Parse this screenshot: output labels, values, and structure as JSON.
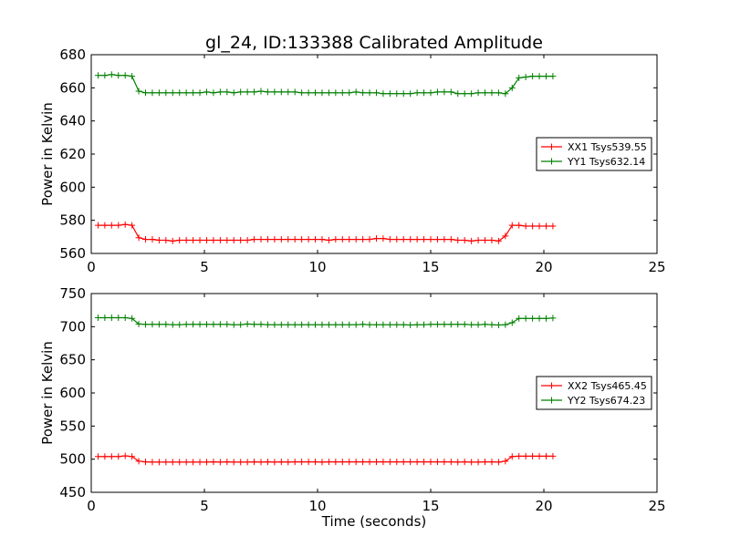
{
  "chart_data": [
    {
      "type": "line",
      "title": "gl_24, ID:133388 Calibrated Amplitude",
      "xlabel": "",
      "ylabel": "Power in Kelvin",
      "xlim": [
        0,
        25
      ],
      "ylim": [
        560,
        680
      ],
      "xticks": [
        0,
        5,
        10,
        15,
        20,
        25
      ],
      "yticks": [
        560,
        580,
        600,
        620,
        640,
        660,
        680
      ],
      "grid": false,
      "legend_position": "center-right",
      "series": [
        {
          "name": "XX1 Tsys539.55",
          "color": "#ff0000",
          "marker": "plus",
          "x": [
            0.3,
            0.6,
            0.9,
            1.2,
            1.5,
            1.8,
            2.1,
            2.4,
            2.7,
            3.0,
            3.3,
            3.6,
            3.9,
            4.2,
            4.5,
            4.8,
            5.1,
            5.4,
            5.7,
            6.0,
            6.3,
            6.6,
            6.9,
            7.2,
            7.5,
            7.8,
            8.1,
            8.4,
            8.7,
            9.0,
            9.3,
            9.6,
            9.9,
            10.2,
            10.5,
            10.8,
            11.1,
            11.4,
            11.7,
            12.0,
            12.3,
            12.6,
            12.9,
            13.2,
            13.5,
            13.8,
            14.1,
            14.4,
            14.7,
            15.0,
            15.3,
            15.6,
            15.9,
            16.2,
            16.5,
            16.8,
            17.1,
            17.4,
            17.7,
            18.0,
            18.3,
            18.6,
            18.9,
            19.2,
            19.5,
            19.8,
            20.1,
            20.4
          ],
          "y": [
            577,
            577,
            577,
            577,
            577.5,
            577,
            569.5,
            568.5,
            568.5,
            568,
            568,
            567.5,
            568,
            568,
            568,
            568,
            568,
            568,
            568,
            568,
            568,
            568,
            568,
            568.5,
            568.5,
            568.5,
            568.5,
            568.5,
            568.5,
            568.5,
            568.5,
            568.5,
            568.5,
            568.5,
            568,
            568.5,
            568.5,
            568.5,
            568.5,
            568.5,
            568.5,
            569,
            569,
            568.5,
            568.5,
            568.5,
            568.5,
            568.5,
            568.5,
            568.5,
            568.5,
            568.5,
            568.5,
            568,
            568,
            567.5,
            568,
            568,
            568,
            567.5,
            570.5,
            577,
            577,
            576.5,
            576.5,
            576.5,
            576.5,
            576.5
          ]
        },
        {
          "name": "YY1 Tsys632.14",
          "color": "#008000",
          "marker": "plus",
          "x": [
            0.3,
            0.6,
            0.9,
            1.2,
            1.5,
            1.8,
            2.1,
            2.4,
            2.7,
            3.0,
            3.3,
            3.6,
            3.9,
            4.2,
            4.5,
            4.8,
            5.1,
            5.4,
            5.7,
            6.0,
            6.3,
            6.6,
            6.9,
            7.2,
            7.5,
            7.8,
            8.1,
            8.4,
            8.7,
            9.0,
            9.3,
            9.6,
            9.9,
            10.2,
            10.5,
            10.8,
            11.1,
            11.4,
            11.7,
            12.0,
            12.3,
            12.6,
            12.9,
            13.2,
            13.5,
            13.8,
            14.1,
            14.4,
            14.7,
            15.0,
            15.3,
            15.6,
            15.9,
            16.2,
            16.5,
            16.8,
            17.1,
            17.4,
            17.7,
            18.0,
            18.3,
            18.6,
            18.9,
            19.2,
            19.5,
            19.8,
            20.1,
            20.4
          ],
          "y": [
            667.5,
            667.5,
            668,
            667.5,
            667.5,
            667,
            658,
            657,
            657,
            657,
            657,
            657,
            657,
            657,
            657,
            657,
            657.5,
            657,
            657.5,
            657.5,
            657,
            657.5,
            657.5,
            657.5,
            658,
            657.5,
            657.5,
            657.5,
            657.5,
            657.5,
            657,
            657,
            657,
            657,
            657,
            657,
            657,
            657,
            657.5,
            657,
            657,
            657,
            656.5,
            656.5,
            656.5,
            656.5,
            656.5,
            657,
            657,
            657,
            657.5,
            657.5,
            657.5,
            656.5,
            656.5,
            656.5,
            657,
            657,
            657,
            657,
            656.5,
            660,
            666,
            666.5,
            667,
            667,
            667,
            667
          ]
        }
      ]
    },
    {
      "type": "line",
      "title": "",
      "xlabel": "Time (seconds)",
      "ylabel": "Power in Kelvin",
      "xlim": [
        0,
        25
      ],
      "ylim": [
        450,
        750
      ],
      "xticks": [
        0,
        5,
        10,
        15,
        20,
        25
      ],
      "yticks": [
        450,
        500,
        550,
        600,
        650,
        700,
        750
      ],
      "grid": false,
      "legend_position": "center-right",
      "series": [
        {
          "name": "XX2 Tsys465.45",
          "color": "#ff0000",
          "marker": "plus",
          "x": [
            0.3,
            0.6,
            0.9,
            1.2,
            1.5,
            1.8,
            2.1,
            2.4,
            2.7,
            3.0,
            3.3,
            3.6,
            3.9,
            4.2,
            4.5,
            4.8,
            5.1,
            5.4,
            5.7,
            6.0,
            6.3,
            6.6,
            6.9,
            7.2,
            7.5,
            7.8,
            8.1,
            8.4,
            8.7,
            9.0,
            9.3,
            9.6,
            9.9,
            10.2,
            10.5,
            10.8,
            11.1,
            11.4,
            11.7,
            12.0,
            12.3,
            12.6,
            12.9,
            13.2,
            13.5,
            13.8,
            14.1,
            14.4,
            14.7,
            15.0,
            15.3,
            15.6,
            15.9,
            16.2,
            16.5,
            16.8,
            17.1,
            17.4,
            17.7,
            18.0,
            18.3,
            18.6,
            18.9,
            19.2,
            19.5,
            19.8,
            20.1,
            20.4
          ],
          "y": [
            504,
            504,
            504,
            504,
            505,
            504,
            497,
            496,
            495.5,
            495.5,
            495.5,
            495.5,
            495.5,
            495.5,
            495.5,
            495.5,
            495.5,
            496,
            495.5,
            496,
            495.5,
            495.5,
            495.5,
            496,
            495.5,
            496,
            495.5,
            496,
            495.5,
            496,
            496,
            496,
            496,
            495.5,
            496,
            496,
            496,
            496,
            496,
            496,
            496,
            496,
            496,
            496,
            496,
            496,
            496,
            496,
            496,
            496,
            496,
            496,
            496,
            495.5,
            496,
            495.5,
            495.5,
            496,
            496,
            495.5,
            497,
            504,
            504.5,
            504.5,
            504.5,
            504.5,
            504.5,
            504.5
          ]
        },
        {
          "name": "YY2 Tsys674.23",
          "color": "#008000",
          "marker": "plus",
          "x": [
            0.3,
            0.6,
            0.9,
            1.2,
            1.5,
            1.8,
            2.1,
            2.4,
            2.7,
            3.0,
            3.3,
            3.6,
            3.9,
            4.2,
            4.5,
            4.8,
            5.1,
            5.4,
            5.7,
            6.0,
            6.3,
            6.6,
            6.9,
            7.2,
            7.5,
            7.8,
            8.1,
            8.4,
            8.7,
            9.0,
            9.3,
            9.6,
            9.9,
            10.2,
            10.5,
            10.8,
            11.1,
            11.4,
            11.7,
            12.0,
            12.3,
            12.6,
            12.9,
            13.2,
            13.5,
            13.8,
            14.1,
            14.4,
            14.7,
            15.0,
            15.3,
            15.6,
            15.9,
            16.2,
            16.5,
            16.8,
            17.1,
            17.4,
            17.7,
            18.0,
            18.3,
            18.6,
            18.9,
            19.2,
            19.5,
            19.8,
            20.1,
            20.4
          ],
          "y": [
            713.5,
            713.5,
            713.5,
            713.5,
            713.5,
            712.5,
            704,
            703.5,
            703.5,
            703.5,
            703.5,
            703,
            703,
            703.5,
            703.5,
            703.5,
            703.5,
            703.5,
            703.5,
            703.5,
            703,
            703,
            704,
            703.5,
            703.5,
            703,
            703,
            703,
            703,
            703,
            703,
            703,
            703,
            703,
            703,
            703,
            703,
            703,
            703,
            703.5,
            703,
            703,
            703,
            703,
            703,
            703,
            702.5,
            703,
            703,
            703.5,
            703.5,
            703.5,
            703.5,
            703.5,
            703.5,
            703,
            703,
            703.5,
            703,
            702.5,
            703,
            706,
            712.5,
            712.5,
            712.5,
            712.5,
            712.5,
            713
          ]
        }
      ]
    }
  ]
}
